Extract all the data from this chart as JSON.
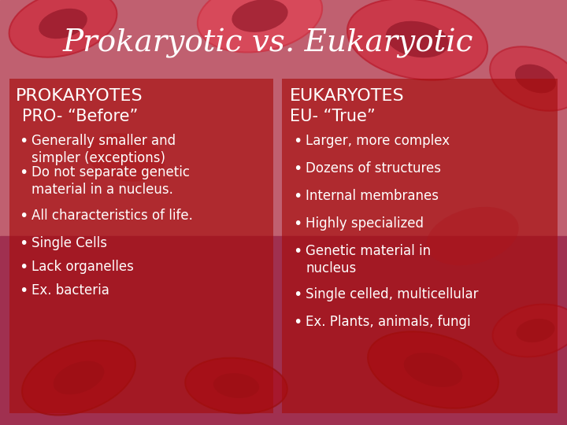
{
  "title": "Prokaryotic vs. Eukaryotic",
  "title_fontsize": 28,
  "title_color": "white",
  "background_color": "#8B0000",
  "left_header": "PROKARYOTES",
  "left_subheader": "PRO- “Before”",
  "left_bullets": [
    "Generally smaller and\nsimpler (exceptions)",
    "Do not separate genetic\nmaterial in a nucleus.",
    "All characteristics of life.",
    "Single Cells",
    "Lack organelles",
    "Ex. bacteria"
  ],
  "right_header": "EUKARYOTES",
  "right_subheader": "EU- “True”",
  "right_bullets": [
    "Larger, more complex",
    "Dozens of structures",
    "Internal membranes",
    "Highly specialized",
    "Genetic material in\nnucleus",
    "Single celled, multicellular",
    "Ex. Plants, animals, fungi"
  ],
  "text_color": "white",
  "header_fontsize": 16,
  "subheader_fontsize": 15,
  "bullet_fontsize": 12,
  "figsize": [
    7.2,
    5.4
  ],
  "dpi": 100
}
